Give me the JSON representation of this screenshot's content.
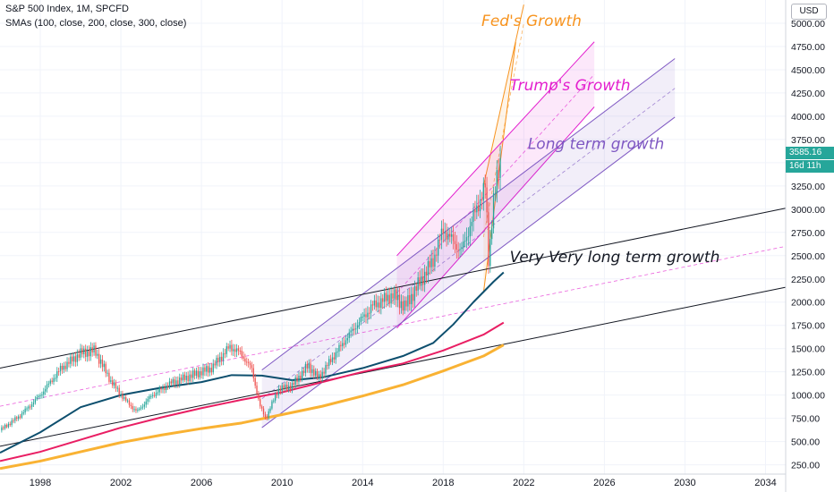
{
  "header": {
    "title": "S&P 500 Index, 1M, SPCFD",
    "sma_legend": "SMAs (100, close, 200, close, 300, close)",
    "currency": "USD",
    "current_price": "3585.16",
    "bar_countdown": "16d 11h"
  },
  "colors": {
    "up": "#26a69a",
    "down": "#ef5350",
    "sma100": "#0d4f6e",
    "sma200": "#e91e63",
    "sma300": "#f9b233",
    "fed": "#f7931e",
    "trump": "#e31fce",
    "longterm": "#7e57c2",
    "verylong": "#131722"
  },
  "chart_data": {
    "type": "line",
    "x_axis": {
      "range": [
        1996.0,
        2035.0
      ],
      "tick_labels": [
        "1998",
        "2002",
        "2006",
        "2010",
        "2014",
        "2018",
        "2022",
        "2026",
        "2030",
        "2034"
      ],
      "tick_values": [
        1998,
        2002,
        2006,
        2010,
        2014,
        2018,
        2022,
        2026,
        2030,
        2034
      ]
    },
    "y_axis": {
      "range": [
        150,
        5250
      ],
      "tick_values": [
        250,
        500,
        750,
        1000,
        1250,
        1500,
        1750,
        2000,
        2250,
        2500,
        2750,
        3000,
        3250,
        3500,
        3750,
        4000,
        4250,
        4500,
        4750,
        5000
      ],
      "tick_labels": [
        "250.00",
        "500.00",
        "750.00",
        "1000.00",
        "1250.00",
        "1500.00",
        "1750.00",
        "2000.00",
        "2250.00",
        "2500.00",
        "2750.00",
        "3000.00",
        "3250.00",
        "3500.00",
        "3750.00",
        "4000.00",
        "4250.00",
        "4500.00",
        "4750.00",
        "5000.00"
      ]
    },
    "price_series": {
      "name": "S&P 500",
      "x": [
        1996.0,
        1997.0,
        1998.0,
        1999.0,
        2000.0,
        2000.7,
        2001.5,
        2002.2,
        2002.8,
        2003.5,
        2004.5,
        2005.5,
        2006.5,
        2007.4,
        2007.9,
        2008.5,
        2008.9,
        2009.2,
        2009.8,
        2010.5,
        2011.3,
        2011.8,
        2012.5,
        2013.5,
        2014.5,
        2015.5,
        2016.1,
        2016.8,
        2017.5,
        2018.0,
        2018.9,
        2019.5,
        2020.1,
        2020.25,
        2020.5,
        2020.9
      ],
      "y": [
        620,
        780,
        1000,
        1280,
        1450,
        1480,
        1150,
        950,
        820,
        990,
        1130,
        1210,
        1290,
        1520,
        1460,
        1280,
        880,
        750,
        1060,
        1100,
        1320,
        1180,
        1400,
        1700,
        1960,
        2080,
        1950,
        2200,
        2450,
        2780,
        2550,
        2920,
        3250,
        2450,
        3100,
        3585
      ]
    },
    "sma_series": [
      {
        "name": "SMA 100",
        "x": [
          1996.0,
          1998.0,
          2000.0,
          2002.0,
          2004.0,
          2006.0,
          2007.5,
          2009.0,
          2010.5,
          2012.0,
          2014.0,
          2016.0,
          2017.5,
          2018.5,
          2019.5,
          2020.5,
          2021.0
        ],
        "y": [
          380,
          600,
          870,
          1000,
          1080,
          1140,
          1215,
          1210,
          1160,
          1190,
          1290,
          1420,
          1560,
          1760,
          2000,
          2220,
          2320
        ]
      },
      {
        "name": "SMA 200",
        "x": [
          1996.0,
          1998.0,
          2000.0,
          2002.0,
          2004.0,
          2006.0,
          2008.0,
          2010.0,
          2012.0,
          2014.0,
          2016.0,
          2018.0,
          2020.0,
          2021.0
        ],
        "y": [
          290,
          390,
          520,
          650,
          760,
          860,
          950,
          1030,
          1140,
          1250,
          1340,
          1480,
          1650,
          1780
        ]
      },
      {
        "name": "SMA 300",
        "x": [
          1996.0,
          1998.0,
          2000.0,
          2002.0,
          2004.0,
          2006.0,
          2008.0,
          2010.0,
          2012.0,
          2014.0,
          2016.0,
          2018.0,
          2020.0,
          2021.0
        ],
        "y": [
          210,
          290,
          390,
          490,
          570,
          640,
          700,
          790,
          880,
          990,
          1110,
          1260,
          1420,
          1540
        ]
      }
    ],
    "channels": [
      {
        "name": "Fed's Growth",
        "label": "Fed's Growth",
        "upper": [
          [
            2020.0,
            3250
          ],
          [
            2022.0,
            5200
          ]
        ],
        "mid": [
          [
            2020.0,
            2700
          ],
          [
            2022.0,
            5000
          ]
        ],
        "lower": [
          [
            2020.0,
            2100
          ],
          [
            2021.6,
            4800
          ]
        ]
      },
      {
        "name": "Trump's Growth",
        "label": "Trump's Growth",
        "upper": [
          [
            2015.7,
            2500
          ],
          [
            2025.5,
            4800
          ]
        ],
        "mid": [
          [
            2015.7,
            2100
          ],
          [
            2025.5,
            4450
          ]
        ],
        "lower": [
          [
            2015.7,
            1720
          ],
          [
            2025.5,
            4100
          ]
        ]
      },
      {
        "name": "Long term growth",
        "label": "Long term growth",
        "upper": [
          [
            2009.0,
            1270
          ],
          [
            2029.5,
            4620
          ]
        ],
        "mid": [
          [
            2009.0,
            960
          ],
          [
            2029.5,
            4300
          ]
        ],
        "lower": [
          [
            2009.0,
            650
          ],
          [
            2029.5,
            3990
          ]
        ]
      },
      {
        "name": "Very Very long term growth",
        "label": "Very Very long term growth",
        "upper": [
          [
            1996.0,
            1290
          ],
          [
            2035.0,
            3010
          ]
        ],
        "mid": [
          [
            1996.0,
            880
          ],
          [
            2035.0,
            2600
          ]
        ],
        "lower": [
          [
            1996.0,
            450
          ],
          [
            2035.0,
            2160
          ]
        ]
      }
    ]
  }
}
